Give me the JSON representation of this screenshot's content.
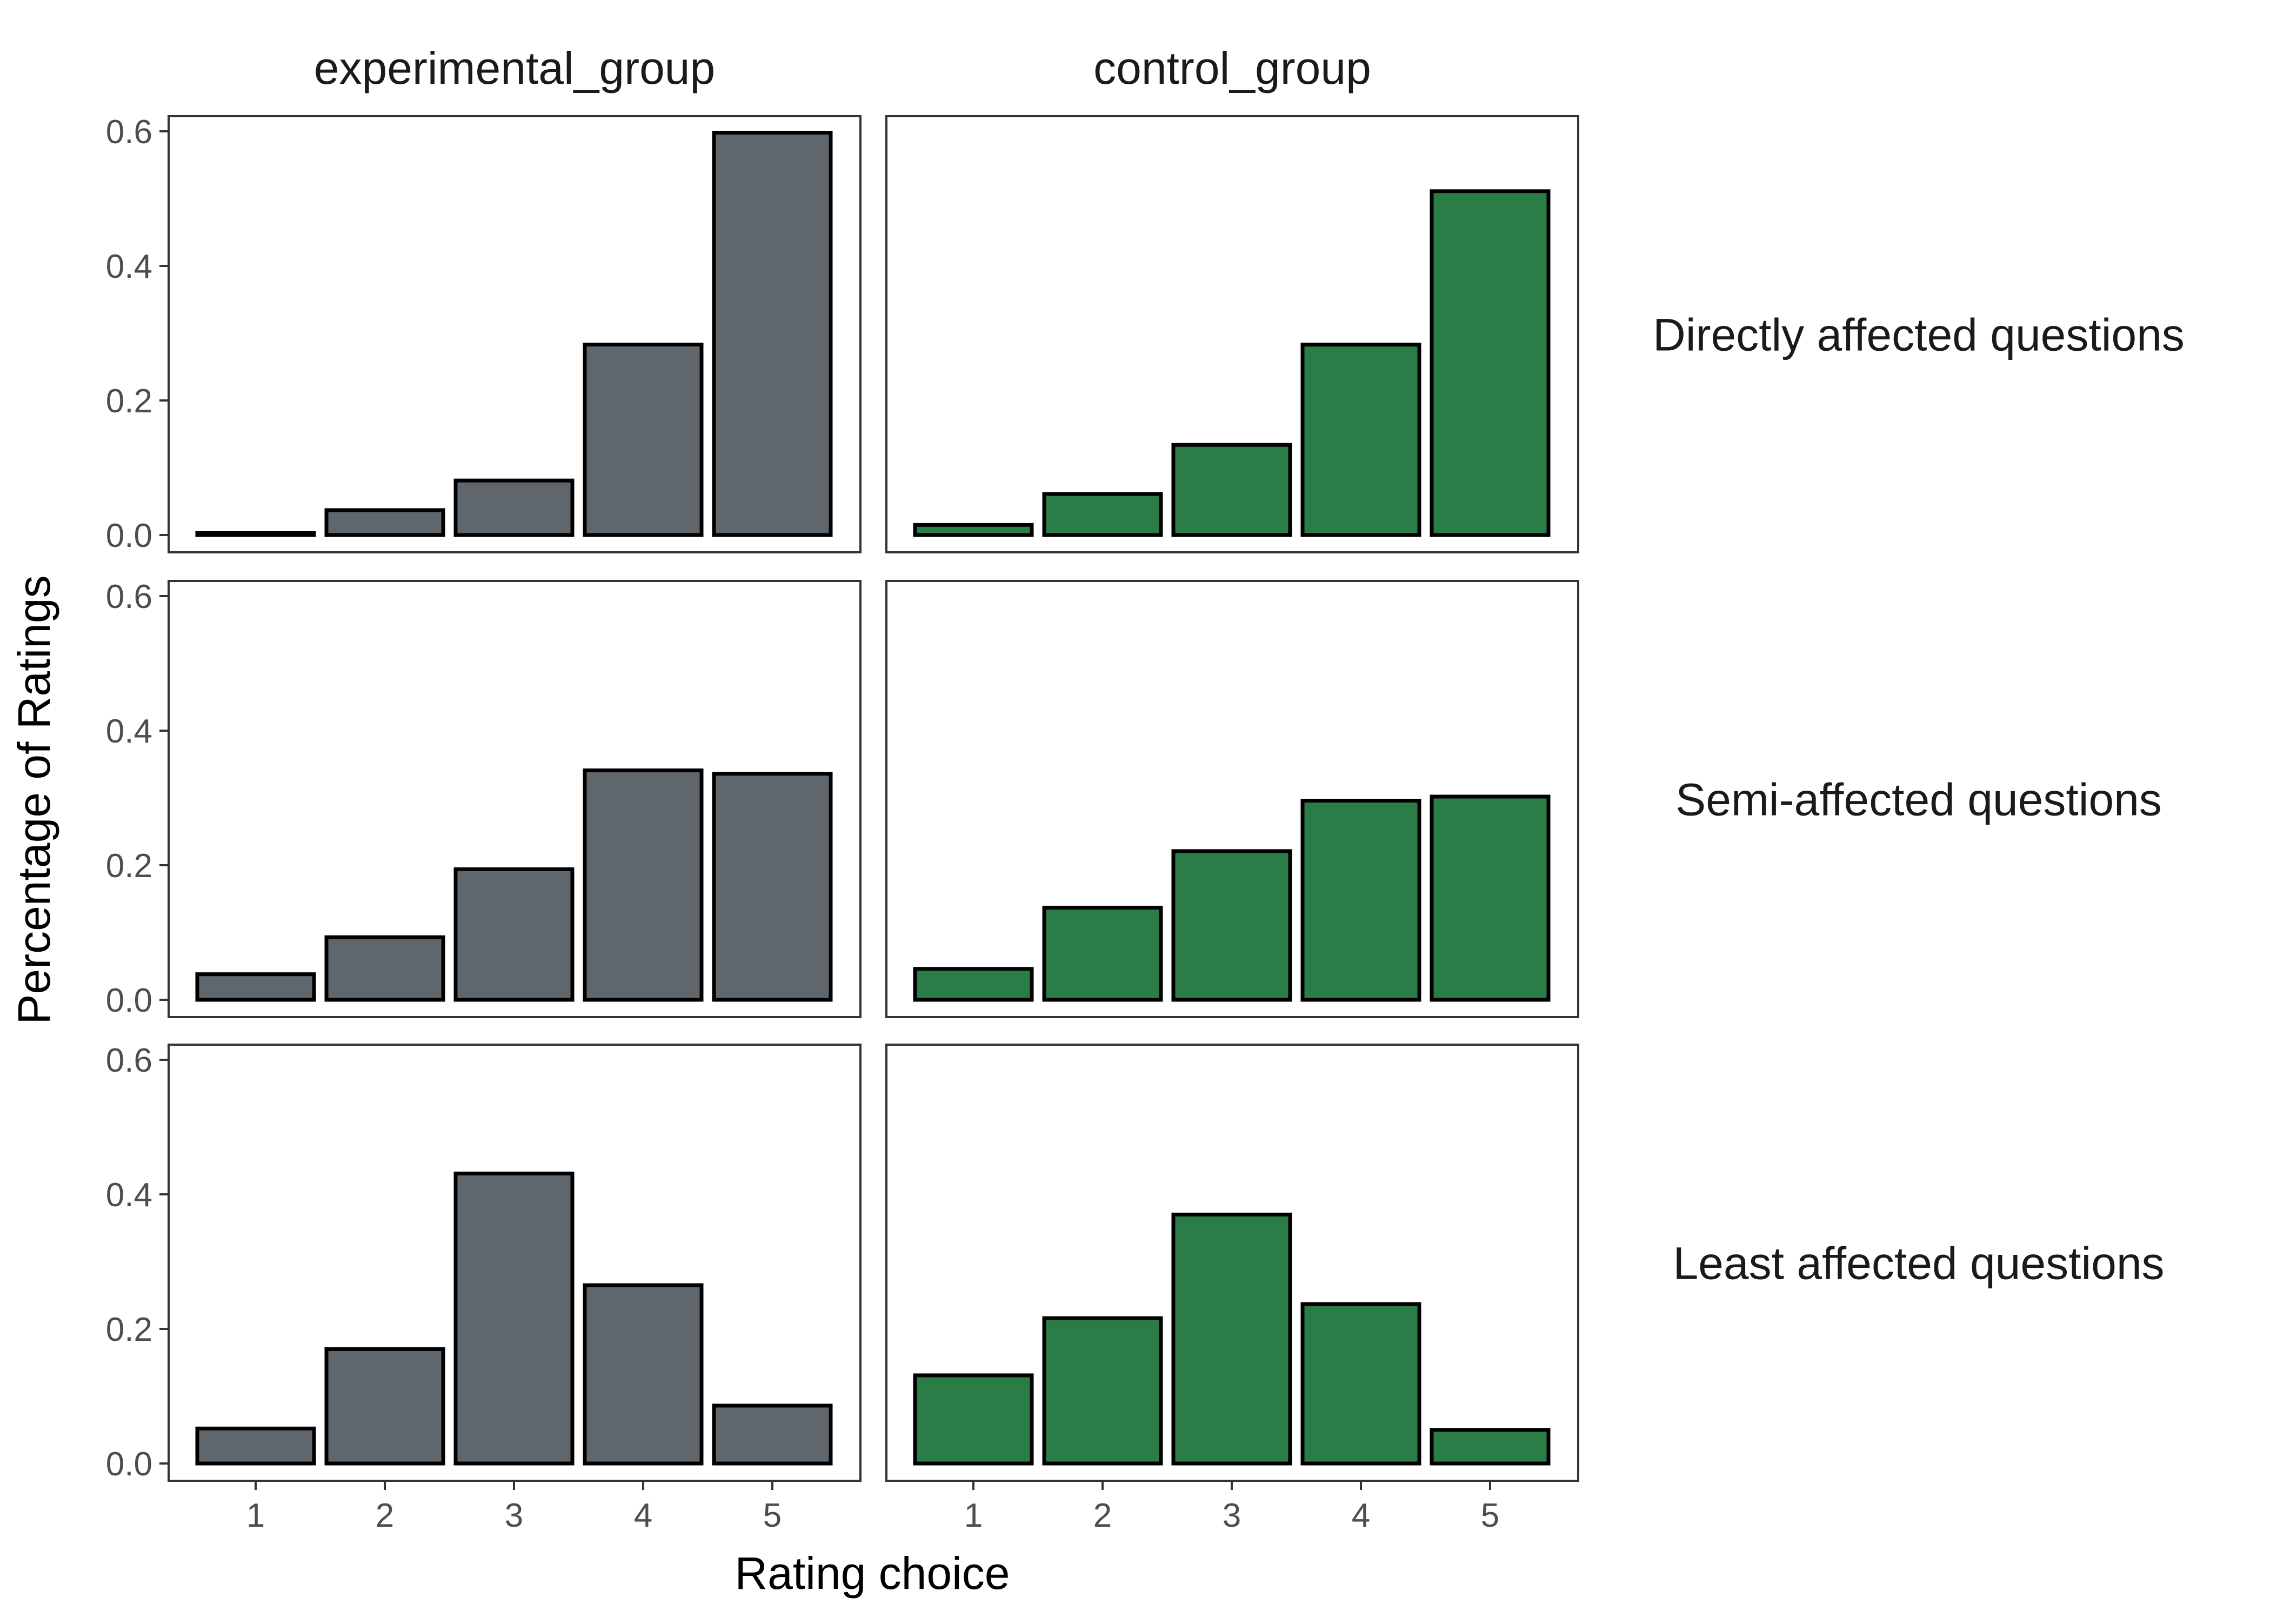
{
  "chart_data": {
    "type": "bar",
    "layout": "facet_grid",
    "xlabel": "Rating choice",
    "ylabel": "Percentage of Ratings",
    "categories": [
      "1",
      "2",
      "3",
      "4",
      "5"
    ],
    "ylim": [
      0,
      0.6
    ],
    "yticks": [
      "0.0",
      "0.2",
      "0.4",
      "0.6"
    ],
    "grid": false,
    "columns": [
      {
        "name": "experimental_group",
        "color": "#5f666c"
      },
      {
        "name": "control_group",
        "color": "#2a7d47"
      }
    ],
    "rows": [
      {
        "name": "Directly affected questions",
        "values": {
          "experimental_group": [
            0.003,
            0.037,
            0.081,
            0.283,
            0.598
          ],
          "control_group": [
            0.015,
            0.061,
            0.134,
            0.283,
            0.511
          ]
        }
      },
      {
        "name": "Semi-affected questions",
        "values": {
          "experimental_group": [
            0.038,
            0.093,
            0.194,
            0.341,
            0.336
          ],
          "control_group": [
            0.046,
            0.137,
            0.221,
            0.296,
            0.302
          ]
        }
      },
      {
        "name": "Least affected questions",
        "values": {
          "experimental_group": [
            0.052,
            0.17,
            0.431,
            0.265,
            0.086
          ],
          "control_group": [
            0.131,
            0.216,
            0.37,
            0.237,
            0.05
          ]
        }
      }
    ]
  }
}
